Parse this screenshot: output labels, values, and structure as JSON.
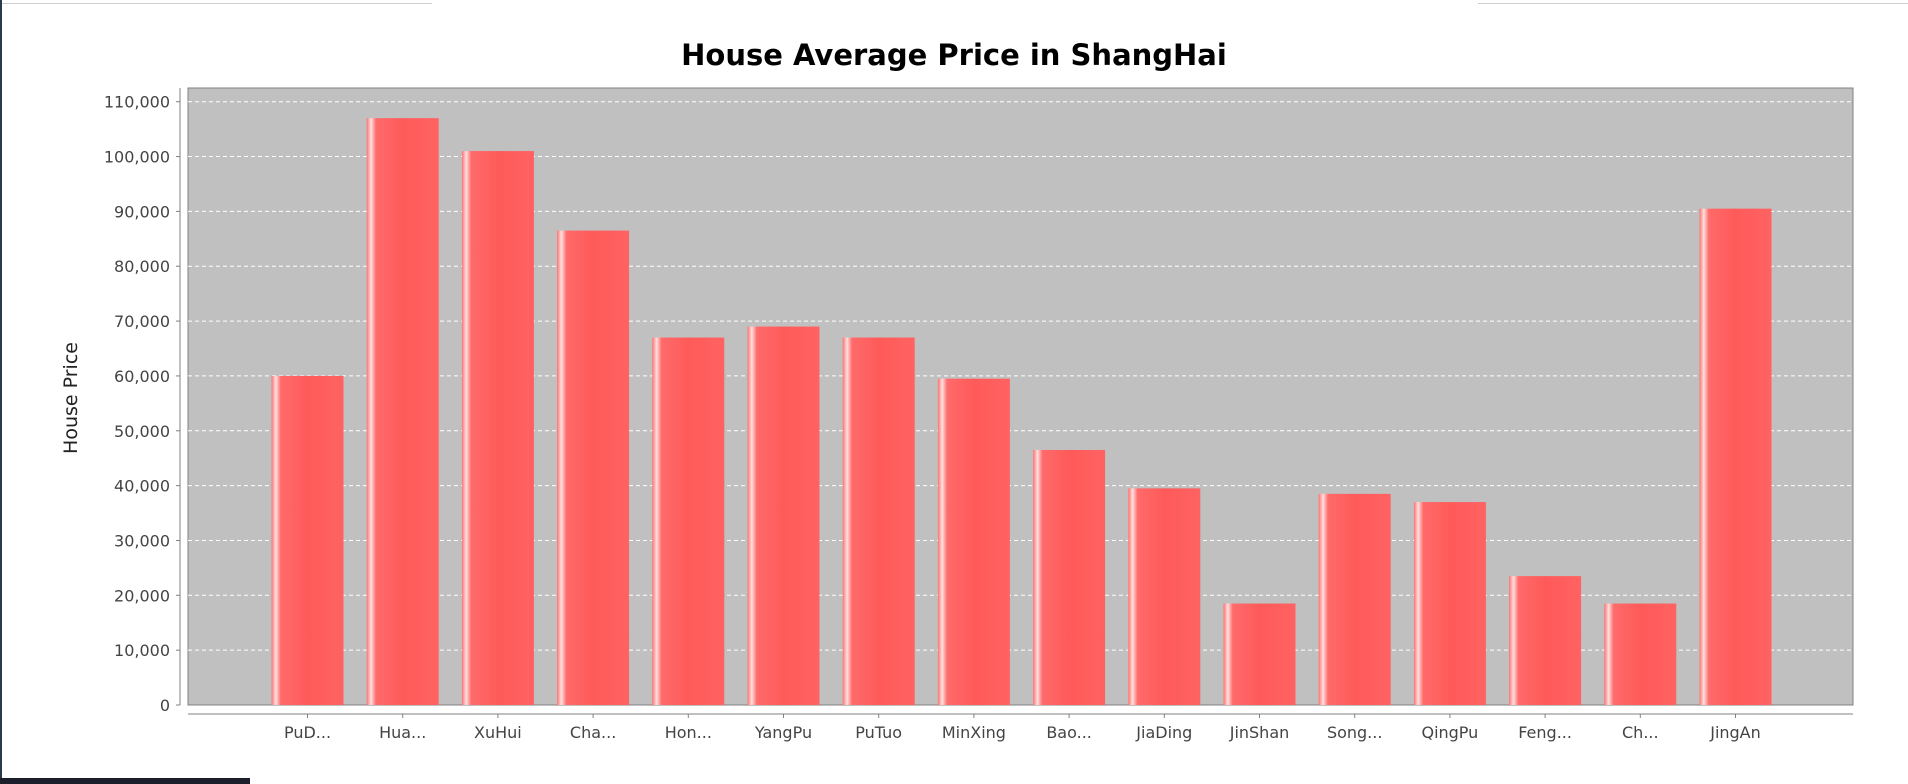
{
  "chart_data": {
    "type": "bar",
    "title": "House Average Price in ShangHai",
    "xlabel": "",
    "ylabel": "House Price",
    "categories": [
      "PuD...",
      "Hua...",
      "XuHui",
      "Cha...",
      "Hon...",
      "YangPu",
      "PuTuo",
      "MinXing",
      "Bao...",
      "JiaDing",
      "JinShan",
      "Song...",
      "QingPu",
      "Feng...",
      "Ch...",
      "JingAn"
    ],
    "values": [
      60000,
      107000,
      101000,
      86500,
      67000,
      69000,
      67000,
      59500,
      46500,
      39500,
      18500,
      38500,
      37000,
      23500,
      18500,
      90500
    ],
    "ylim": [
      0,
      112500
    ],
    "yticks": [
      0,
      10000,
      20000,
      30000,
      40000,
      50000,
      60000,
      70000,
      80000,
      90000,
      100000,
      110000
    ],
    "ytick_labels": [
      "0",
      "10,000",
      "20,000",
      "30,000",
      "40,000",
      "50,000",
      "60,000",
      "70,000",
      "80,000",
      "90,000",
      "100,000",
      "110,000"
    ],
    "grid": true,
    "legend": "none",
    "colors": {
      "plot_background": "#c0c0c0",
      "bar": "#ff5555",
      "bar_highlight": "#ffd6d6",
      "grid": "#ffffff",
      "axis": "#808080",
      "tick_label": "#444444",
      "title": "#000000"
    }
  }
}
